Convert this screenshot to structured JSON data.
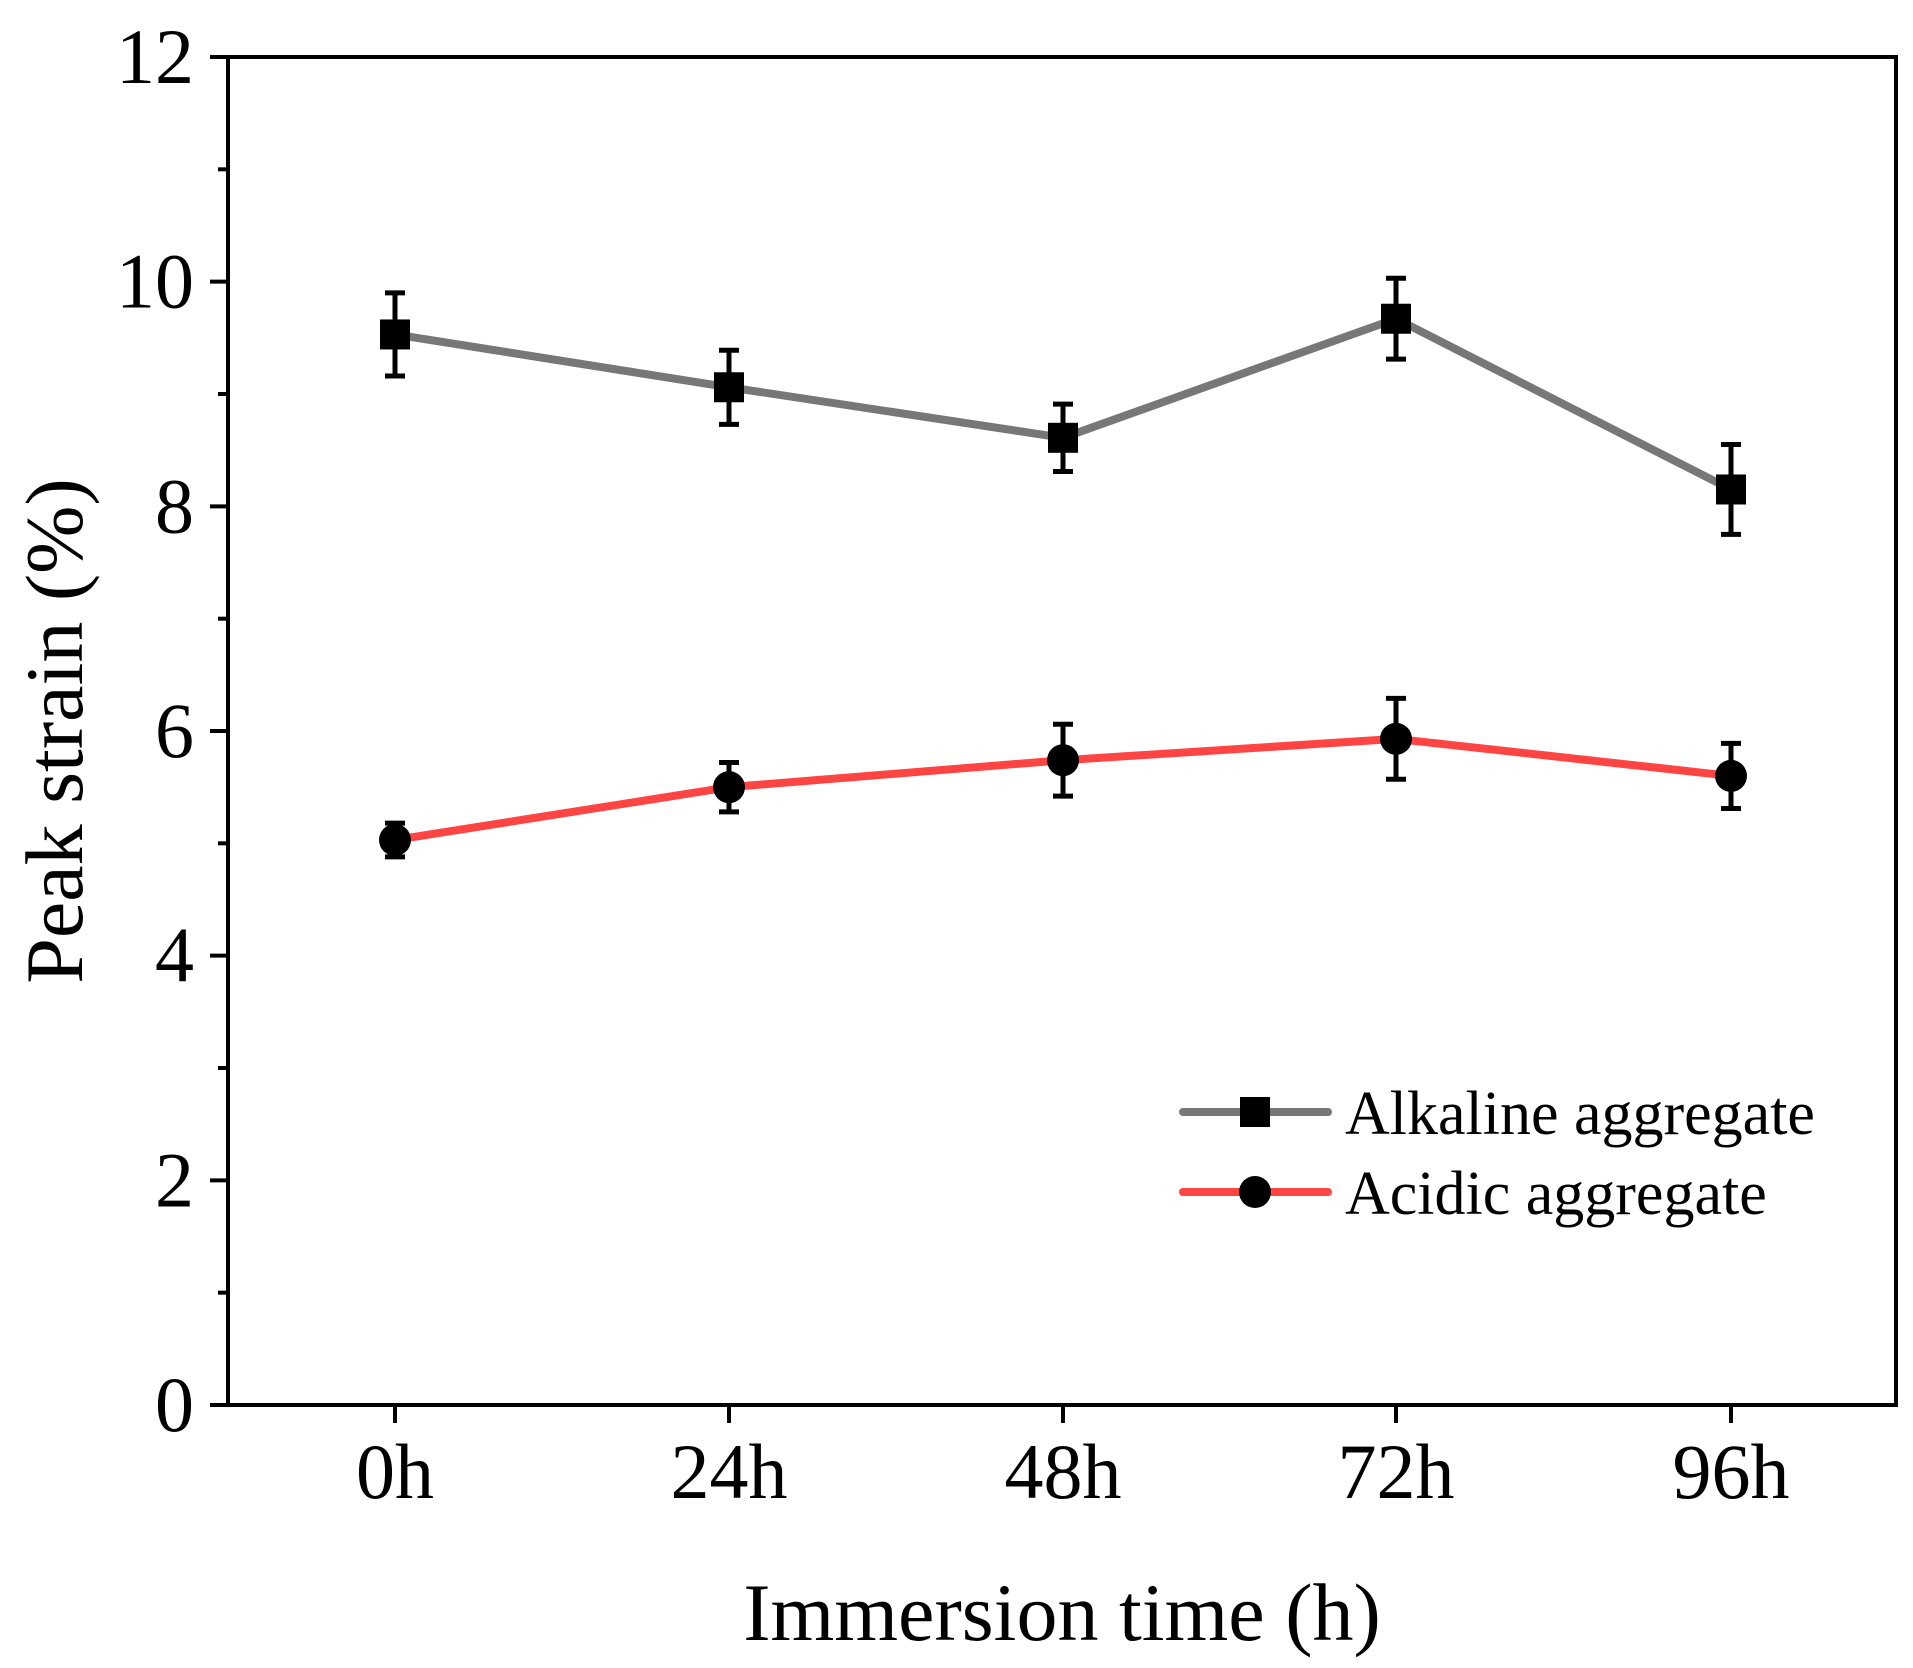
{
  "chart_data": {
    "type": "line",
    "title": "",
    "xlabel": "Immersion time (h)",
    "ylabel": "Peak strain (%)",
    "categories": [
      "0h",
      "24h",
      "48h",
      "72h",
      "96h"
    ],
    "ylim": [
      0,
      12
    ],
    "yticks": [
      0,
      2,
      4,
      6,
      8,
      10,
      12
    ],
    "grid": false,
    "legend_position": "bottom-right",
    "series": [
      {
        "name": "Alkaline aggregate",
        "color": "#777777",
        "marker": "square",
        "values": [
          9.53,
          9.06,
          8.61,
          9.67,
          8.15
        ],
        "errors": [
          0.37,
          0.33,
          0.3,
          0.36,
          0.4
        ]
      },
      {
        "name": "Acidic aggregate",
        "color": "#ff4444",
        "marker": "circle",
        "values": [
          5.03,
          5.5,
          5.74,
          5.93,
          5.6
        ],
        "errors": [
          0.15,
          0.22,
          0.32,
          0.36,
          0.29
        ]
      }
    ]
  }
}
